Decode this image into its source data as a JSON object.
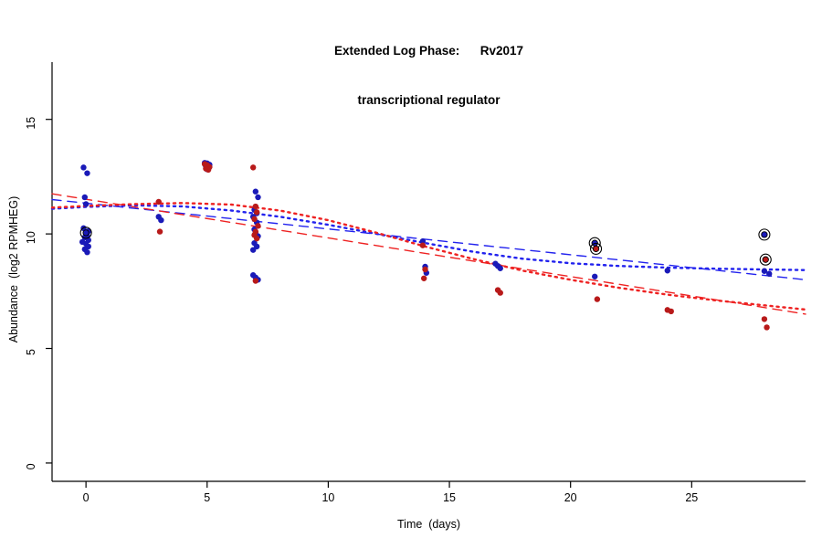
{
  "title": {
    "line1": "Extended Log Phase:      Rv2017",
    "line2": "transcriptional regulator"
  },
  "axes": {
    "xlabel": "Time  (days)",
    "ylabel": "Abundance  (log2 RPMHEG)"
  },
  "chart_data": {
    "type": "scatter",
    "title": "Extended Log Phase: Rv2017 transcriptional regulator",
    "xlabel": "Time (days)",
    "ylabel": "Abundance (log2 RPMHEG)",
    "xlim": [
      -1.4,
      29.7
    ],
    "ylim": [
      -0.8,
      17.5
    ],
    "xticks": [
      0,
      5,
      10,
      15,
      20,
      25
    ],
    "yticks": [
      0,
      5,
      10,
      15
    ],
    "grid": false,
    "legend": "none",
    "colors": {
      "blue": "#1a1ab8",
      "red": "#b81a1a",
      "blue_line": "#2222ee",
      "red_line": "#ee2222"
    },
    "series": [
      {
        "name": "fit-blue-dashed",
        "type": "line",
        "color": "#2222ee",
        "dash": "dashed",
        "width": 1.4,
        "points": [
          [
            -1.4,
            11.5
          ],
          [
            29.7,
            8.0
          ]
        ]
      },
      {
        "name": "fit-red-dashed",
        "type": "line",
        "color": "#ee2222",
        "dash": "dashed",
        "width": 1.4,
        "points": [
          [
            -1.4,
            11.75
          ],
          [
            29.7,
            6.5
          ]
        ]
      },
      {
        "name": "fit-blue-dotted",
        "type": "line",
        "color": "#2222ee",
        "dash": "dotted",
        "width": 2.4,
        "points": [
          [
            -1.4,
            11.1
          ],
          [
            0,
            11.18
          ],
          [
            2,
            11.25
          ],
          [
            4,
            11.2
          ],
          [
            6,
            11.02
          ],
          [
            8,
            10.75
          ],
          [
            10,
            10.4
          ],
          [
            12,
            10.0
          ],
          [
            14,
            9.6
          ],
          [
            16,
            9.22
          ],
          [
            18,
            8.92
          ],
          [
            20,
            8.72
          ],
          [
            22,
            8.6
          ],
          [
            24,
            8.53
          ],
          [
            26,
            8.48
          ],
          [
            29.7,
            8.42
          ]
        ]
      },
      {
        "name": "fit-red-dotted",
        "type": "line",
        "color": "#ee2222",
        "dash": "dotted",
        "width": 2.4,
        "points": [
          [
            -1.4,
            11.15
          ],
          [
            0,
            11.22
          ],
          [
            2,
            11.3
          ],
          [
            4,
            11.35
          ],
          [
            6,
            11.28
          ],
          [
            8,
            11.02
          ],
          [
            10,
            10.6
          ],
          [
            12,
            10.05
          ],
          [
            14,
            9.45
          ],
          [
            16,
            8.9
          ],
          [
            18,
            8.4
          ],
          [
            20,
            8.0
          ],
          [
            22,
            7.65
          ],
          [
            24,
            7.35
          ],
          [
            26,
            7.1
          ],
          [
            29.7,
            6.7
          ]
        ]
      },
      {
        "name": "blue-points",
        "type": "points",
        "color": "#1a1ab8",
        "points": [
          [
            -0.1,
            12.9
          ],
          [
            0.05,
            12.65
          ],
          [
            -0.05,
            11.6
          ],
          [
            0.0,
            11.3
          ],
          [
            -0.1,
            10.25
          ],
          [
            0.1,
            10.12
          ],
          [
            0.05,
            9.93
          ],
          [
            -0.05,
            9.85
          ],
          [
            0.1,
            9.73
          ],
          [
            -0.15,
            9.65
          ],
          [
            0.0,
            9.57
          ],
          [
            0.1,
            9.45
          ],
          [
            -0.05,
            9.33
          ],
          [
            0.05,
            9.2
          ],
          [
            3.0,
            10.75
          ],
          [
            3.1,
            10.6
          ],
          [
            4.9,
            13.1
          ],
          [
            5.0,
            13.08
          ],
          [
            5.1,
            13.02
          ],
          [
            4.95,
            12.95
          ],
          [
            5.05,
            12.88
          ],
          [
            5.0,
            12.82
          ],
          [
            7.0,
            11.85
          ],
          [
            7.1,
            11.6
          ],
          [
            6.95,
            11.05
          ],
          [
            7.05,
            10.9
          ],
          [
            6.9,
            10.75
          ],
          [
            7.05,
            10.5
          ],
          [
            6.95,
            10.2
          ],
          [
            7.0,
            10.05
          ],
          [
            7.1,
            9.9
          ],
          [
            6.95,
            9.6
          ],
          [
            7.05,
            9.45
          ],
          [
            6.9,
            9.3
          ],
          [
            6.9,
            8.2
          ],
          [
            7.0,
            8.1
          ],
          [
            7.1,
            8.0
          ],
          [
            13.9,
            9.68
          ],
          [
            14.0,
            8.57
          ],
          [
            14.05,
            8.3
          ],
          [
            16.9,
            8.7
          ],
          [
            17.0,
            8.6
          ],
          [
            17.1,
            8.5
          ],
          [
            21.0,
            8.14
          ],
          [
            24.0,
            8.4
          ],
          [
            28.0,
            8.38
          ],
          [
            28.2,
            8.26
          ]
        ]
      },
      {
        "name": "red-points",
        "type": "points",
        "color": "#b81a1a",
        "points": [
          [
            3.0,
            11.4
          ],
          [
            3.05,
            10.1
          ],
          [
            4.9,
            13.05
          ],
          [
            5.0,
            13.0
          ],
          [
            5.1,
            12.92
          ],
          [
            4.95,
            12.85
          ],
          [
            5.05,
            12.8
          ],
          [
            6.9,
            12.9
          ],
          [
            7.0,
            11.2
          ],
          [
            7.05,
            10.95
          ],
          [
            6.95,
            10.65
          ],
          [
            7.1,
            10.35
          ],
          [
            7.0,
            10.1
          ],
          [
            6.95,
            9.95
          ],
          [
            7.05,
            9.8
          ],
          [
            7.0,
            7.95
          ],
          [
            13.9,
            9.5
          ],
          [
            14.0,
            8.45
          ],
          [
            13.95,
            8.06
          ],
          [
            17.0,
            7.55
          ],
          [
            17.1,
            7.43
          ],
          [
            21.1,
            7.15
          ],
          [
            24.0,
            6.68
          ],
          [
            24.15,
            6.62
          ],
          [
            28.0,
            6.28
          ],
          [
            28.1,
            5.92
          ]
        ]
      },
      {
        "name": "blue-circled-points",
        "type": "points",
        "circled": true,
        "color": "#1a1ab8",
        "points": [
          [
            0.0,
            10.05
          ],
          [
            21.0,
            9.6
          ],
          [
            28.0,
            9.97
          ]
        ]
      },
      {
        "name": "red-circled-points",
        "type": "points",
        "circled": true,
        "color": "#b81a1a",
        "points": [
          [
            21.05,
            9.35
          ],
          [
            28.05,
            8.88
          ]
        ]
      }
    ]
  }
}
